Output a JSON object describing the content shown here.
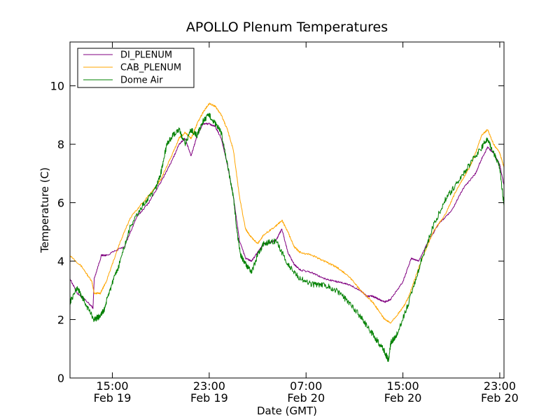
{
  "chart_data": {
    "type": "line",
    "title": "APOLLO Plenum Temperatures",
    "xlabel": "Date (GMT)",
    "ylabel": "Temperature (C)",
    "x_unit": "hours since Feb 19 11:30 GMT",
    "xlim": [
      0,
      35.85
    ],
    "ylim": [
      0,
      11.5
    ],
    "y_ticks": [
      0,
      2,
      4,
      6,
      8,
      10
    ],
    "x_ticks": [
      {
        "x": 3.5,
        "time": "15:00",
        "date": "Feb 19"
      },
      {
        "x": 11.5,
        "time": "23:00",
        "date": "Feb 19"
      },
      {
        "x": 19.5,
        "time": "07:00",
        "date": "Feb 20"
      },
      {
        "x": 27.5,
        "time": "15:00",
        "date": "Feb 20"
      },
      {
        "x": 35.5,
        "time": "23:00",
        "date": "Feb 20"
      }
    ],
    "grid": false,
    "legend_position": "top-left",
    "series": [
      {
        "name": "DI_PLENUM",
        "color": "#800080",
        "x": [
          0,
          0.6,
          1.2,
          1.9,
          2.0,
          2.6,
          3.0,
          4.5,
          5.5,
          6.5,
          7.5,
          8.5,
          9.0,
          9.5,
          10.0,
          10.5,
          11.0,
          11.5,
          12.0,
          12.5,
          13.0,
          13.5,
          14.0,
          14.5,
          15.0,
          15.5,
          16.0,
          17.0,
          17.5,
          18.0,
          18.5,
          19.0,
          20.0,
          21.0,
          22.0,
          23.0,
          24.0,
          24.5,
          25.0,
          25.5,
          26.0,
          26.5,
          27.5,
          28.2,
          28.8,
          29.5,
          30.5,
          31.5,
          32.5,
          33.5,
          34.0,
          34.5,
          35.0,
          35.5,
          35.85
        ],
        "values": [
          3.4,
          2.9,
          2.7,
          2.4,
          3.4,
          4.2,
          4.2,
          4.5,
          5.5,
          6.0,
          6.7,
          7.5,
          8.0,
          8.2,
          7.6,
          8.3,
          8.7,
          8.7,
          8.6,
          8.2,
          7.3,
          6.2,
          4.7,
          4.1,
          4.0,
          4.3,
          4.6,
          4.7,
          5.1,
          4.3,
          3.9,
          3.7,
          3.6,
          3.4,
          3.3,
          3.2,
          3.0,
          2.8,
          2.8,
          2.7,
          2.6,
          2.7,
          3.3,
          4.1,
          4.0,
          4.6,
          5.3,
          5.7,
          6.5,
          7.0,
          7.5,
          7.9,
          7.7,
          7.3,
          6.6
        ]
      },
      {
        "name": "CAB_PLENUM",
        "color": "#FFA500",
        "x": [
          0,
          1.0,
          1.8,
          2.0,
          2.5,
          3.0,
          4.0,
          5.0,
          6.0,
          7.0,
          7.5,
          8.5,
          9.0,
          9.5,
          10.0,
          10.5,
          11.0,
          11.5,
          12.0,
          12.5,
          13.0,
          13.5,
          14.0,
          14.5,
          15.0,
          15.5,
          16.0,
          17.0,
          17.5,
          18.0,
          18.5,
          19.0,
          20.0,
          21.0,
          22.0,
          23.0,
          24.0,
          25.0,
          25.5,
          26.0,
          26.5,
          27.5,
          28.0,
          29.0,
          30.0,
          31.0,
          32.0,
          33.0,
          33.5,
          34.0,
          34.5,
          35.0,
          35.5,
          35.85
        ],
        "values": [
          4.2,
          3.8,
          3.3,
          2.9,
          2.9,
          3.3,
          4.5,
          5.5,
          6.0,
          6.5,
          6.8,
          7.7,
          8.2,
          8.4,
          8.2,
          8.7,
          9.1,
          9.4,
          9.3,
          9.0,
          8.5,
          7.8,
          6.2,
          5.1,
          4.8,
          4.6,
          4.9,
          5.2,
          5.4,
          5.0,
          4.5,
          4.3,
          4.2,
          4.0,
          3.8,
          3.5,
          3.0,
          2.6,
          2.3,
          2.0,
          1.9,
          2.4,
          2.8,
          4.0,
          5.0,
          5.6,
          6.5,
          7.2,
          7.7,
          8.3,
          8.5,
          8.0,
          7.7,
          7.2
        ]
      },
      {
        "name": "Dome Air",
        "color": "#008000",
        "x": [
          0,
          0.6,
          1.2,
          2.0,
          2.4,
          2.8,
          3.2,
          4.0,
          5.0,
          6.0,
          7.0,
          7.5,
          8.0,
          8.5,
          9.0,
          9.5,
          10.0,
          10.5,
          11.0,
          11.5,
          12.0,
          12.5,
          13.0,
          13.5,
          13.8,
          14.1,
          14.5,
          15.0,
          15.5,
          16.0,
          17.0,
          18.0,
          19.0,
          20.0,
          21.0,
          22.0,
          23.0,
          24.0,
          25.0,
          25.5,
          26.0,
          26.3,
          26.5,
          27.0,
          28.0,
          29.0,
          30.0,
          31.0,
          32.0,
          33.0,
          34.0,
          34.5,
          35.0,
          35.5,
          35.85
        ],
        "values": [
          2.6,
          3.1,
          2.6,
          2.0,
          2.1,
          2.3,
          2.9,
          3.8,
          5.2,
          5.9,
          6.4,
          7.0,
          8.0,
          8.3,
          8.5,
          8.0,
          8.5,
          8.3,
          8.8,
          9.0,
          8.7,
          8.4,
          7.3,
          6.2,
          5.0,
          4.2,
          3.9,
          3.6,
          4.2,
          4.6,
          4.7,
          3.9,
          3.4,
          3.2,
          3.2,
          3.0,
          2.6,
          2.1,
          1.5,
          1.2,
          0.9,
          0.6,
          1.2,
          1.5,
          2.6,
          4.0,
          5.2,
          6.1,
          6.7,
          7.3,
          7.9,
          8.2,
          7.7,
          7.2,
          5.9
        ]
      }
    ]
  }
}
